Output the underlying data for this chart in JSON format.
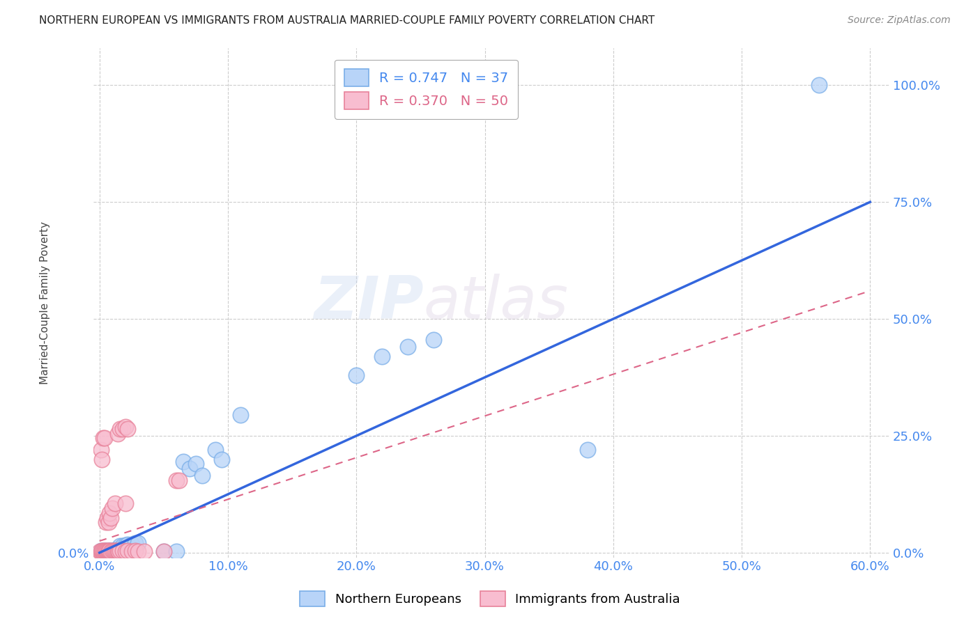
{
  "title": "NORTHERN EUROPEAN VS IMMIGRANTS FROM AUSTRALIA MARRIED-COUPLE FAMILY POVERTY CORRELATION CHART",
  "source": "Source: ZipAtlas.com",
  "xlabel_vals": [
    0.0,
    0.1,
    0.2,
    0.3,
    0.4,
    0.5,
    0.6
  ],
  "ylabel_vals": [
    0.0,
    0.25,
    0.5,
    0.75,
    1.0
  ],
  "xlim": [
    -0.005,
    0.615
  ],
  "ylim": [
    -0.01,
    1.08
  ],
  "legend1_label": "R = 0.747   N = 37",
  "legend2_label": "R = 0.370   N = 50",
  "scatter_color1": "#b8d4f8",
  "scatter_color2": "#f8bdd0",
  "scatter_edge1": "#7aaee8",
  "scatter_edge2": "#e8829a",
  "line_color1": "#3366dd",
  "line_color2": "#dd6688",
  "watermark_zip": "ZIP",
  "watermark_atlas": "atlas",
  "ylabel": "Married-Couple Family Poverty",
  "background_color": "#ffffff",
  "grid_color": "#cccccc",
  "tick_color": "#4488ee",
  "title_color": "#222222",
  "source_color": "#888888",
  "blue_line_x0": 0.0,
  "blue_line_y0": 0.0,
  "blue_line_x1": 0.6,
  "blue_line_y1": 0.75,
  "pink_line_x0": 0.0,
  "pink_line_y0": 0.025,
  "pink_line_x1": 0.6,
  "pink_line_y1": 0.56,
  "blue_scatter": [
    [
      0.001,
      0.005
    ],
    [
      0.002,
      0.003
    ],
    [
      0.003,
      0.003
    ],
    [
      0.004,
      0.004
    ],
    [
      0.005,
      0.004
    ],
    [
      0.006,
      0.003
    ],
    [
      0.007,
      0.005
    ],
    [
      0.008,
      0.004
    ],
    [
      0.009,
      0.004
    ],
    [
      0.01,
      0.005
    ],
    [
      0.011,
      0.005
    ],
    [
      0.012,
      0.006
    ],
    [
      0.013,
      0.005
    ],
    [
      0.014,
      0.008
    ],
    [
      0.015,
      0.007
    ],
    [
      0.016,
      0.015
    ],
    [
      0.018,
      0.015
    ],
    [
      0.02,
      0.016
    ],
    [
      0.022,
      0.018
    ],
    [
      0.025,
      0.018
    ],
    [
      0.028,
      0.02
    ],
    [
      0.03,
      0.02
    ],
    [
      0.05,
      0.003
    ],
    [
      0.06,
      0.003
    ],
    [
      0.065,
      0.195
    ],
    [
      0.07,
      0.18
    ],
    [
      0.075,
      0.19
    ],
    [
      0.08,
      0.165
    ],
    [
      0.09,
      0.22
    ],
    [
      0.095,
      0.2
    ],
    [
      0.11,
      0.295
    ],
    [
      0.2,
      0.38
    ],
    [
      0.22,
      0.42
    ],
    [
      0.24,
      0.44
    ],
    [
      0.26,
      0.455
    ],
    [
      0.38,
      0.22
    ],
    [
      0.56,
      1.0
    ]
  ],
  "pink_scatter": [
    [
      0.0,
      0.003
    ],
    [
      0.001,
      0.002
    ],
    [
      0.002,
      0.003
    ],
    [
      0.002,
      0.005
    ],
    [
      0.003,
      0.002
    ],
    [
      0.003,
      0.004
    ],
    [
      0.004,
      0.003
    ],
    [
      0.004,
      0.005
    ],
    [
      0.005,
      0.003
    ],
    [
      0.005,
      0.005
    ],
    [
      0.006,
      0.003
    ],
    [
      0.006,
      0.005
    ],
    [
      0.007,
      0.003
    ],
    [
      0.007,
      0.005
    ],
    [
      0.008,
      0.004
    ],
    [
      0.009,
      0.003
    ],
    [
      0.01,
      0.004
    ],
    [
      0.011,
      0.004
    ],
    [
      0.012,
      0.005
    ],
    [
      0.013,
      0.004
    ],
    [
      0.014,
      0.004
    ],
    [
      0.015,
      0.003
    ],
    [
      0.016,
      0.004
    ],
    [
      0.018,
      0.004
    ],
    [
      0.02,
      0.003
    ],
    [
      0.022,
      0.004
    ],
    [
      0.025,
      0.003
    ],
    [
      0.028,
      0.004
    ],
    [
      0.03,
      0.003
    ],
    [
      0.035,
      0.003
    ],
    [
      0.001,
      0.22
    ],
    [
      0.002,
      0.2
    ],
    [
      0.003,
      0.245
    ],
    [
      0.004,
      0.245
    ],
    [
      0.014,
      0.255
    ],
    [
      0.016,
      0.265
    ],
    [
      0.018,
      0.265
    ],
    [
      0.02,
      0.27
    ],
    [
      0.022,
      0.265
    ],
    [
      0.005,
      0.065
    ],
    [
      0.006,
      0.075
    ],
    [
      0.007,
      0.065
    ],
    [
      0.008,
      0.085
    ],
    [
      0.009,
      0.075
    ],
    [
      0.01,
      0.095
    ],
    [
      0.012,
      0.105
    ],
    [
      0.05,
      0.003
    ],
    [
      0.06,
      0.155
    ],
    [
      0.062,
      0.155
    ],
    [
      0.02,
      0.105
    ]
  ]
}
